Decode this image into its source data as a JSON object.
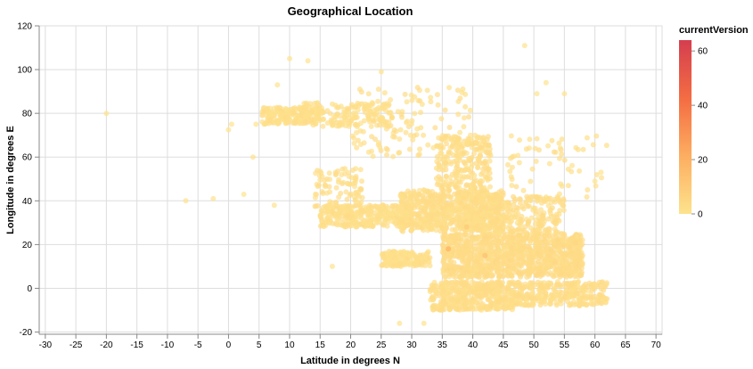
{
  "chart_data": {
    "type": "scatter",
    "title": "Geographical Location",
    "xlabel": "Latitude in degrees N",
    "ylabel": "Longitude in degrees E",
    "xlim": [
      -31,
      71
    ],
    "ylim": [
      -21,
      120
    ],
    "x_ticks": [
      -30,
      -25,
      -20,
      -15,
      -10,
      -5,
      0,
      5,
      10,
      15,
      20,
      25,
      30,
      35,
      40,
      45,
      50,
      55,
      60,
      65,
      70
    ],
    "y_ticks": [
      -20,
      0,
      20,
      40,
      60,
      80,
      100,
      120
    ],
    "grid": true,
    "color_field": "currentVersion",
    "color_scale": {
      "domain": [
        0,
        64
      ],
      "range": [
        "#fde38d",
        "#fdae61",
        "#d53e4f"
      ]
    },
    "legend": {
      "title": "currentVersion",
      "ticks": [
        0,
        20,
        40,
        60
      ],
      "placement": "right"
    },
    "clusters": [
      {
        "x": [
          5.5,
          15
        ],
        "y": [
          75,
          83
        ],
        "n": 180,
        "v": 1
      },
      {
        "x": [
          12,
          27
        ],
        "y": [
          74,
          85
        ],
        "n": 160,
        "v": 1
      },
      {
        "x": [
          15,
          30
        ],
        "y": [
          28,
          38
        ],
        "n": 320,
        "v": 1
      },
      {
        "x": [
          28,
          45
        ],
        "y": [
          26,
          45
        ],
        "n": 700,
        "v": 2
      },
      {
        "x": [
          34,
          43
        ],
        "y": [
          45,
          70
        ],
        "n": 250,
        "v": 2
      },
      {
        "x": [
          35,
          58
        ],
        "y": [
          5,
          25
        ],
        "n": 1100,
        "v": 3
      },
      {
        "x": [
          33,
          47
        ],
        "y": [
          -10,
          3
        ],
        "n": 450,
        "v": 2
      },
      {
        "x": [
          47,
          62
        ],
        "y": [
          -8,
          3
        ],
        "n": 300,
        "v": 2
      },
      {
        "x": [
          25,
          33
        ],
        "y": [
          10,
          17
        ],
        "n": 160,
        "v": 1
      },
      {
        "x": [
          40,
          55
        ],
        "y": [
          25,
          42
        ],
        "n": 260,
        "v": 2
      },
      {
        "x": [
          20,
          40
        ],
        "y": [
          60,
          92
        ],
        "n": 130,
        "v": 1
      },
      {
        "x": [
          14,
          22
        ],
        "y": [
          37,
          55
        ],
        "n": 90,
        "v": 1
      },
      {
        "x": [
          45,
          62
        ],
        "y": [
          40,
          70
        ],
        "n": 60,
        "v": 1
      }
    ],
    "outliers": [
      {
        "x": -20,
        "y": 80,
        "v": 0
      },
      {
        "x": -7,
        "y": 40,
        "v": 0
      },
      {
        "x": -2.5,
        "y": 41,
        "v": 0
      },
      {
        "x": 0,
        "y": 72.5,
        "v": 0
      },
      {
        "x": 0.5,
        "y": 75,
        "v": 0
      },
      {
        "x": 2.5,
        "y": 43,
        "v": 0
      },
      {
        "x": 4,
        "y": 60,
        "v": 0
      },
      {
        "x": 4.5,
        "y": 75,
        "v": 0
      },
      {
        "x": 7.5,
        "y": 38,
        "v": 0
      },
      {
        "x": 8,
        "y": 93,
        "v": 0
      },
      {
        "x": 10,
        "y": 105,
        "v": 0
      },
      {
        "x": 13,
        "y": 104,
        "v": 0
      },
      {
        "x": 17,
        "y": 10,
        "v": 0
      },
      {
        "x": 25,
        "y": 99,
        "v": 0
      },
      {
        "x": 28,
        "y": -16,
        "v": 0
      },
      {
        "x": 32,
        "y": -16,
        "v": 0
      },
      {
        "x": 48.5,
        "y": 111,
        "v": 0
      },
      {
        "x": 50.5,
        "y": 89,
        "v": 0
      },
      {
        "x": 52,
        "y": 94,
        "v": 0
      },
      {
        "x": 55,
        "y": 89,
        "v": 0
      },
      {
        "x": 60,
        "y": 49,
        "v": 0
      },
      {
        "x": 61,
        "y": 53,
        "v": 0
      },
      {
        "x": 36,
        "y": 18,
        "v": 30
      },
      {
        "x": 39,
        "y": 28,
        "v": 15
      },
      {
        "x": 42,
        "y": 15,
        "v": 22
      }
    ]
  }
}
